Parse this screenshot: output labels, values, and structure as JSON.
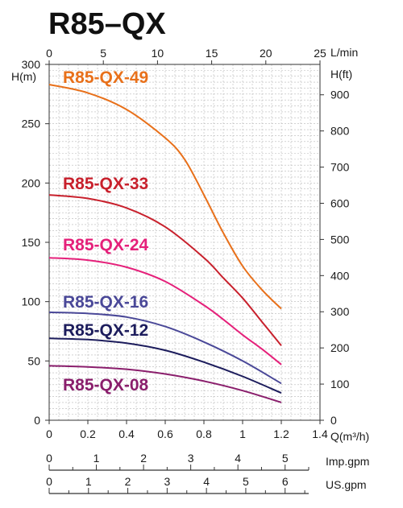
{
  "title": "R85–QX",
  "chart_data": {
    "type": "line",
    "title": "R85–QX",
    "x_axis_bottom": {
      "label": "Q(m³/h)",
      "range": [
        0,
        1.4
      ],
      "ticks": [
        "0",
        "0.2",
        "0.4",
        "0.6",
        "0.8",
        "1",
        "1.2",
        "1.4"
      ]
    },
    "x_axis_top": {
      "label": "L/min",
      "range": [
        0,
        25
      ],
      "ticks": [
        "0",
        "5",
        "10",
        "15",
        "20",
        "25"
      ]
    },
    "y_axis_left": {
      "label": "H(m)",
      "range": [
        0,
        300
      ],
      "ticks": [
        "0",
        "50",
        "100",
        "150",
        "200",
        "250",
        "300"
      ]
    },
    "y_axis_right": {
      "label": "H(ft)",
      "range": [
        0,
        984
      ],
      "ticks": [
        "0",
        "100",
        "200",
        "300",
        "400",
        "500",
        "600",
        "700",
        "800",
        "900"
      ]
    },
    "scale_imp": {
      "label": "Imp.gpm",
      "range": [
        0,
        5.5
      ],
      "ticks": [
        "0",
        "1",
        "2",
        "3",
        "4",
        "5"
      ]
    },
    "scale_us": {
      "label": "US.gpm",
      "range": [
        0,
        6.6
      ],
      "ticks": [
        "0",
        "1",
        "2",
        "3",
        "4",
        "5",
        "6"
      ]
    },
    "grid": true,
    "legend": "inline labels on plot",
    "series": [
      {
        "name": "R85-QX-49",
        "color": "#e8701a",
        "x": [
          0,
          0.2,
          0.4,
          0.6,
          0.7,
          0.8,
          0.9,
          1.0,
          1.1,
          1.2
        ],
        "y": [
          283,
          276,
          262,
          238,
          220,
          190,
          158,
          130,
          110,
          94
        ]
      },
      {
        "name": "R85-QX-33",
        "color": "#c8202c",
        "x": [
          0,
          0.2,
          0.4,
          0.6,
          0.8,
          0.9,
          1.0,
          1.1,
          1.2
        ],
        "y": [
          190,
          187,
          179,
          163,
          137,
          120,
          103,
          83,
          63
        ]
      },
      {
        "name": "R85-QX-24",
        "color": "#e5207a",
        "x": [
          0,
          0.2,
          0.4,
          0.6,
          0.8,
          0.9,
          1.0,
          1.1,
          1.2
        ],
        "y": [
          137,
          135,
          129,
          117,
          97,
          85,
          72,
          60,
          47
        ]
      },
      {
        "name": "R85-QX-16",
        "color": "#4a4898",
        "x": [
          0,
          0.2,
          0.4,
          0.6,
          0.8,
          1.0,
          1.2
        ],
        "y": [
          91,
          90,
          87,
          79,
          66,
          50,
          31
        ]
      },
      {
        "name": "R85-QX-12",
        "color": "#1c1c5c",
        "x": [
          0,
          0.2,
          0.4,
          0.6,
          0.8,
          1.0,
          1.2
        ],
        "y": [
          69,
          68,
          65,
          59,
          49,
          37,
          23
        ]
      },
      {
        "name": "R85-QX-08",
        "color": "#8a1e6c",
        "x": [
          0,
          0.2,
          0.4,
          0.6,
          0.8,
          1.0,
          1.2
        ],
        "y": [
          46,
          45,
          43,
          39,
          33,
          25,
          15
        ]
      }
    ]
  }
}
